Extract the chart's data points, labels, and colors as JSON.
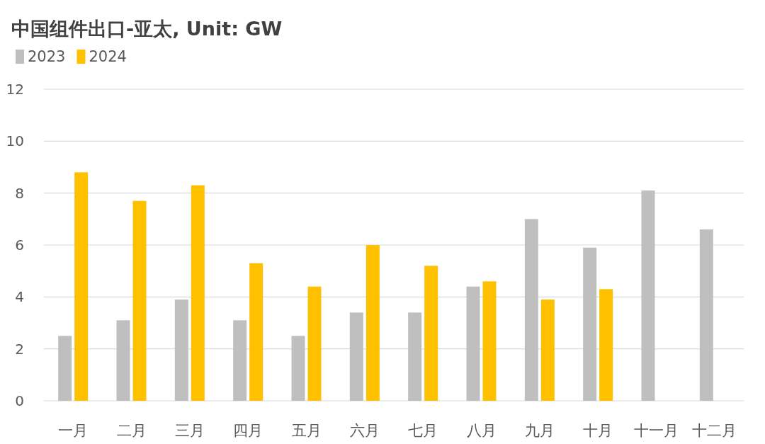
{
  "chart_data": {
    "type": "bar",
    "title": "中国组件出口-亚太, Unit: GW",
    "categories": [
      "一月",
      "二月",
      "三月",
      "四月",
      "五月",
      "六月",
      "七月",
      "八月",
      "九月",
      "十月",
      "十一月",
      "十二月"
    ],
    "series": [
      {
        "name": "2023",
        "color": "#bfbfbf",
        "values": [
          2.5,
          3.1,
          3.9,
          3.1,
          2.5,
          3.4,
          3.4,
          4.4,
          7.0,
          5.9,
          8.1,
          6.6
        ]
      },
      {
        "name": "2024",
        "color": "#ffc000",
        "values": [
          8.8,
          7.7,
          8.3,
          5.3,
          4.4,
          6.0,
          5.2,
          4.6,
          3.9,
          4.3,
          null,
          null
        ]
      }
    ],
    "ylim": [
      0,
      12
    ],
    "yticks": [
      0,
      2,
      4,
      6,
      8,
      10,
      12
    ],
    "grid": "y",
    "legend": "top left"
  }
}
